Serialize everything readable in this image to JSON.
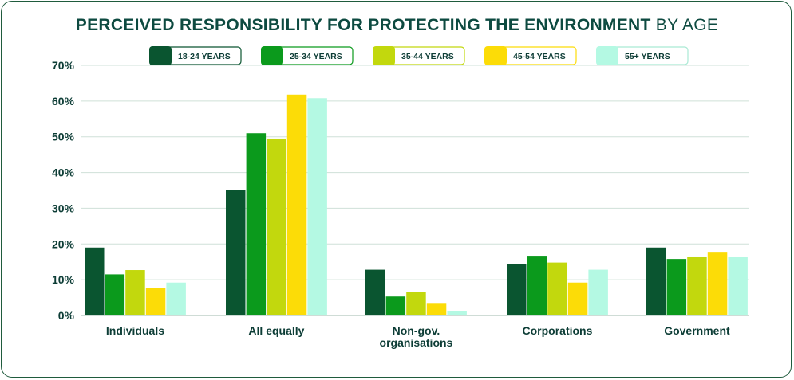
{
  "chart_data": {
    "type": "bar",
    "title": "PERCEIVED RESPONSIBILITY FOR PROTECTING THE ENVIRONMENT",
    "title_suffix": "BY AGE",
    "xlabel": "",
    "ylabel": "",
    "ylim": [
      0,
      70
    ],
    "yticks": [
      "0%",
      "10%",
      "20%",
      "30%",
      "40%",
      "50%",
      "60%",
      "70%"
    ],
    "grid": true,
    "legend_position": "top",
    "categories": [
      "Individuals",
      "All equally",
      "Non-gov. organisations",
      "Corporations",
      "Government"
    ],
    "series": [
      {
        "name": "18-24 YEARS",
        "color": "#0a5530",
        "values": [
          19,
          35,
          12.8,
          14.3,
          19
        ]
      },
      {
        "name": "25-34 YEARS",
        "color": "#0b9a1c",
        "values": [
          11.5,
          51,
          5.3,
          16.7,
          15.8
        ]
      },
      {
        "name": "35-44 YEARS",
        "color": "#c2d80d",
        "values": [
          12.7,
          49.5,
          6.5,
          14.8,
          16.5
        ]
      },
      {
        "name": "45-54 YEARS",
        "color": "#fcdc07",
        "values": [
          7.8,
          61.8,
          3.5,
          9.2,
          17.8
        ]
      },
      {
        "name": "55+ YEARS",
        "color": "#b4f9e3",
        "values": [
          9.2,
          60.8,
          1.3,
          12.8,
          16.5
        ]
      }
    ]
  }
}
